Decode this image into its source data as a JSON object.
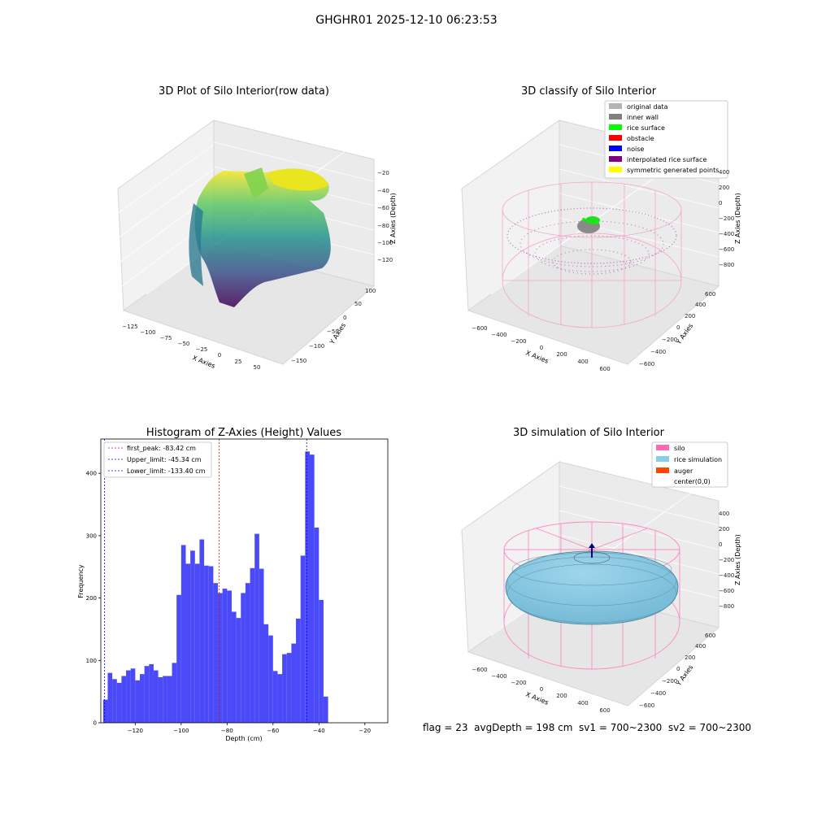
{
  "figure": {
    "suptitle": "GHGHR01 2025-12-10 06:23:53",
    "footer": "flag = 23  avgDepth = 198 cm  sv1 = 700~2300  sv2 = 700~2300"
  },
  "panels": {
    "raw": {
      "title": "3D Plot of Silo Interior(row data)",
      "xlabel": "X Axies",
      "ylabel": "Y Axies",
      "zlabel": "Z Axies (Depth)",
      "xticks": [
        "−125",
        "−100",
        "−75",
        "−50",
        "−25",
        "0",
        "25",
        "50"
      ],
      "yticks": [
        "−150",
        "−100",
        "−50",
        "0",
        "50",
        "100"
      ],
      "zticks": [
        "−120",
        "−100",
        "−80",
        "−60",
        "−40",
        "−20"
      ]
    },
    "classify": {
      "title": "3D classify of Silo Interior",
      "xlabel": "X Axies",
      "ylabel": "Y Axies",
      "zlabel": "Z Axies (Depth)",
      "xticks": [
        "−600",
        "−400",
        "−200",
        "0",
        "200",
        "400",
        "600"
      ],
      "yticks": [
        "−600",
        "−400",
        "−200",
        "0",
        "200",
        "400",
        "600"
      ],
      "zticks": [
        "−800",
        "−600",
        "−400",
        "−200",
        "0",
        "200",
        "400"
      ],
      "legend": [
        {
          "label": "original data",
          "color": "#b4b4b4"
        },
        {
          "label": "inner wall",
          "color": "#808080"
        },
        {
          "label": "rice surface",
          "color": "#00ff00"
        },
        {
          "label": "obstacle",
          "color": "#ff0000"
        },
        {
          "label": "noise",
          "color": "#0000ff"
        },
        {
          "label": "interpolated rice surface",
          "color": "#800080"
        },
        {
          "label": "symmetric generated points",
          "color": "#ffff00"
        }
      ]
    },
    "simulation": {
      "title": "3D simulation of Silo Interior",
      "xlabel": "X Axies",
      "ylabel": "Y Axies",
      "zlabel": "Z Axies (Depth)",
      "xticks": [
        "−600",
        "−400",
        "−200",
        "0",
        "200",
        "400",
        "600"
      ],
      "yticks": [
        "−600",
        "−400",
        "−200",
        "0",
        "200",
        "400",
        "600"
      ],
      "zticks": [
        "−800",
        "−600",
        "−400",
        "−200",
        "0",
        "200",
        "400"
      ],
      "legend": [
        {
          "label": "silo",
          "color": "#ff69b4"
        },
        {
          "label": "rice simulation",
          "color": "#87ceeb"
        },
        {
          "label": "auger",
          "color": "#ff4500"
        },
        {
          "label": "center(0,0)",
          "color": ""
        }
      ]
    }
  },
  "chart_data": {
    "type": "bar",
    "title": "Histogram of Z-Axies (Height) Values",
    "xlabel": "Depth (cm)",
    "ylabel": "Frequency",
    "xlim": [
      -135,
      -10
    ],
    "ylim": [
      0,
      455
    ],
    "xticks": [
      -120,
      -100,
      -80,
      -60,
      -40,
      -20
    ],
    "yticks": [
      0,
      100,
      200,
      300,
      400
    ],
    "bin_start": -134.0,
    "bin_width": 2.0,
    "values": [
      37,
      80,
      70,
      64,
      75,
      84,
      87,
      68,
      78,
      91,
      94,
      84,
      73,
      75,
      75,
      96,
      205,
      285,
      255,
      276,
      255,
      294,
      252,
      251,
      224,
      208,
      215,
      212,
      178,
      168,
      208,
      224,
      248,
      303,
      247,
      158,
      140,
      83,
      78,
      110,
      112,
      127,
      167,
      268,
      435,
      430,
      313,
      197,
      42
    ],
    "bar_color": "#4a4af8",
    "legend_location": "upper left",
    "lines": [
      {
        "label": "first_peak: -83.42 cm",
        "x": -83.42,
        "color": "#ff0000"
      },
      {
        "label": "Upper_limit: -45.34 cm",
        "x": -45.34,
        "color": "#0000ff"
      },
      {
        "label": "Lower_limit: -133.40 cm",
        "x": -133.4,
        "color": "#0000ff"
      }
    ]
  }
}
